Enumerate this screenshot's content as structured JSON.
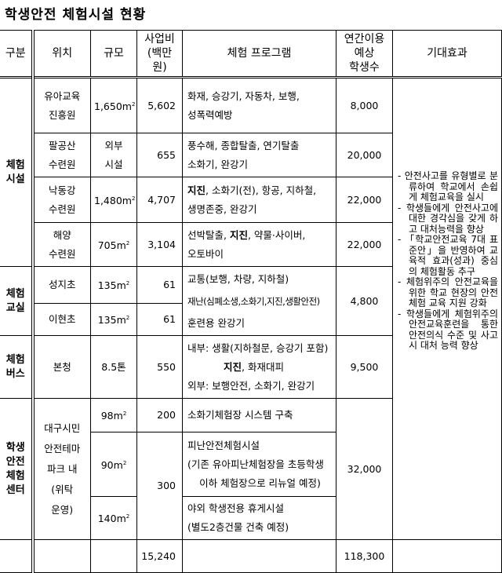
{
  "title": "학생안전 체험시설 현황",
  "headers": {
    "category": "구분",
    "location": "위치",
    "scale": "규모",
    "budget": "사업비\n(백만원)",
    "budget_l1": "사업비",
    "budget_l2": "(백만원)",
    "program": "체험 프로그램",
    "students_l1": "연간이용",
    "students_l2": "예상",
    "students_l3": "학생수",
    "effect": "기대효과"
  },
  "groups": {
    "facility": {
      "label_l1": "체험",
      "label_l2": "시설",
      "rows": [
        {
          "loc_l1": "유아교육",
          "loc_l2": "진흥원",
          "scale": "1,650m",
          "sup": "2",
          "budget": "5,602",
          "prog_l1": "화재, 승강기, 자동차, 보행,",
          "prog_l2": "성폭력예방",
          "students": "8,000"
        },
        {
          "loc_l1": "팔공산",
          "loc_l2": "수련원",
          "scale_l1": "외부",
          "scale_l2": "시설",
          "budget": "655",
          "prog_l1": "풍수해, 종합탈출, 연기탈출",
          "prog_l2": "소화기, 완강기",
          "students": "20,000"
        },
        {
          "loc_l1": "낙동강",
          "loc_l2": "수련원",
          "scale": "1,480m",
          "sup": "2",
          "budget": "4,707",
          "prog_l1_bold": "지진",
          "prog_l1": ", 소화기(전), 항공, 지하철,",
          "prog_l2": "생명존중, 완강기",
          "students": "22,000"
        },
        {
          "loc_l1": "해양",
          "loc_l2": "수련원",
          "scale": "705m",
          "sup": "2",
          "budget": "3,104",
          "prog_l1a": "선박탈출, ",
          "prog_l1_bold": "지진",
          "prog_l1b": ", 약물·사이버,",
          "prog_l2": "오토바이",
          "students": "22,000"
        }
      ]
    },
    "classroom": {
      "label_l1": "체험",
      "label_l2": "교실",
      "rows": [
        {
          "loc": "성지초",
          "scale": "135m",
          "sup": "2",
          "budget": "61"
        },
        {
          "loc": "이현초",
          "scale": "135m",
          "sup": "2",
          "budget": "61"
        }
      ],
      "prog_l1": "교통(보행, 차량, 지하철)",
      "prog_l2": "재난(심폐소생,소화기,지진,생활안전)",
      "prog_l3": "훈련용 완강기",
      "students": "4,800"
    },
    "bus": {
      "label_l1": "체험",
      "label_l2": "버스",
      "loc": "본청",
      "scale": "8.5톤",
      "budget": "550",
      "prog_l1": "내부: 생활(지하철문, 승강기 포함)",
      "prog_l2_bold": "지진",
      "prog_l2": ", 화재대피",
      "prog_l3": "외부: 보행안전, 소화기, 완강기",
      "students": "9,500"
    },
    "center": {
      "label_l1": "학생",
      "label_l2": "안전",
      "label_l3": "체험",
      "label_l4": "센터",
      "loc_l1": "대구시민",
      "loc_l2": "안전테마",
      "loc_l3": "파크 내",
      "loc_l4": "(위탁",
      "loc_l5": "운영)",
      "rows": [
        {
          "scale": "98m",
          "sup": "2",
          "budget": "200",
          "prog_l1": "소화기체험장 시스템 구축"
        },
        {
          "scale": "90m",
          "sup": "2",
          "prog_l1": "피난안전체험시설",
          "prog_l2": "(기존 유아피난체험장을 초등학생",
          "prog_l3": "이하 체험장으로 리뉴얼 예정)"
        },
        {
          "scale": "140m",
          "sup": "2",
          "prog_l1": "야외 학생전용 휴게시설",
          "prog_l2": "(별도2층건물 건축 예정)"
        }
      ],
      "budget_shared": "300",
      "students": "32,000"
    }
  },
  "effects": [
    "- 안전사고를 유형별로 분류하여 학교에서 손쉽게 체험교육을 실시",
    "- 학생들에게 안전사고에 대한 경각심을 갖게 하고 대처능력을 향상",
    "- 「학교안전교육 7대 표준안」을 반영하여 교육적 효과(성과) 중심의 체험활동 추구",
    "- 체험위주의 안전교육을 위한 학교 현장의 안전 체험 교육 지원 강화",
    "- 학생들에게 체험위주의 안전교육훈련을 통한 안전의식 수준 및 사고 시 대처 능력 향상"
  ],
  "totals": {
    "budget": "15,240",
    "students": "118,300"
  }
}
